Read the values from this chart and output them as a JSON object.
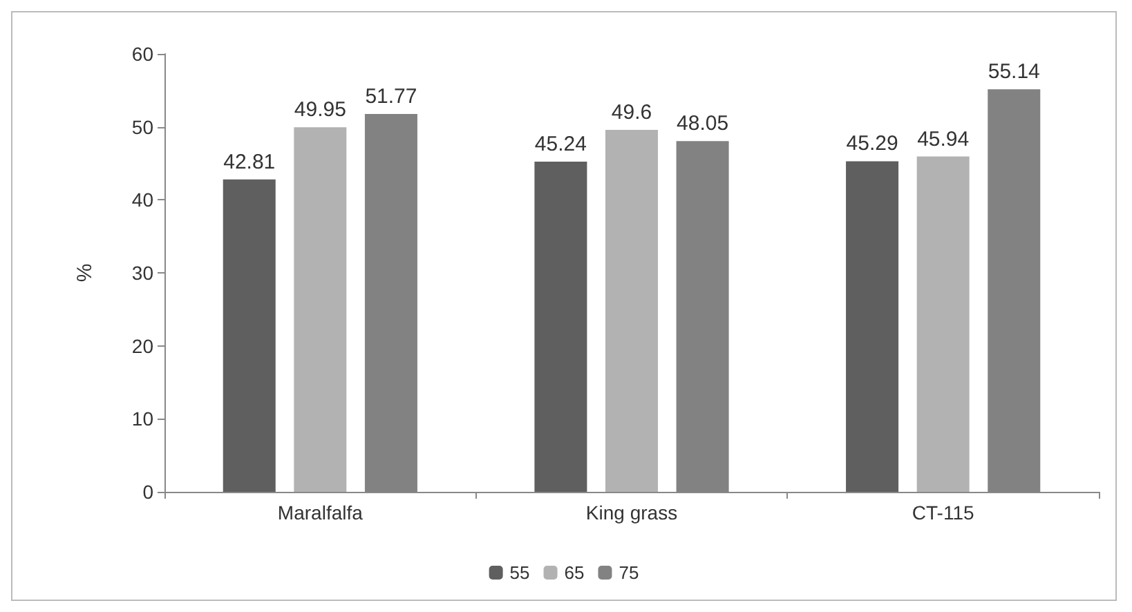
{
  "chart_data": {
    "type": "bar",
    "ylabel": "%",
    "categories": [
      "Maralfalfa",
      "King grass",
      "CT-115"
    ],
    "series": [
      {
        "name": "55",
        "color": "#5f5f5f",
        "values": [
          42.81,
          45.24,
          45.29
        ]
      },
      {
        "name": "65",
        "color": "#b2b2b2",
        "values": [
          49.95,
          49.6,
          45.94
        ]
      },
      {
        "name": "75",
        "color": "#828282",
        "values": [
          51.77,
          48.05,
          55.14
        ]
      }
    ],
    "ylim": [
      0,
      60
    ],
    "yticks": [
      0,
      10,
      20,
      30,
      40,
      50,
      60
    ],
    "grid": false,
    "legend": "bottom",
    "data_labels": true
  }
}
